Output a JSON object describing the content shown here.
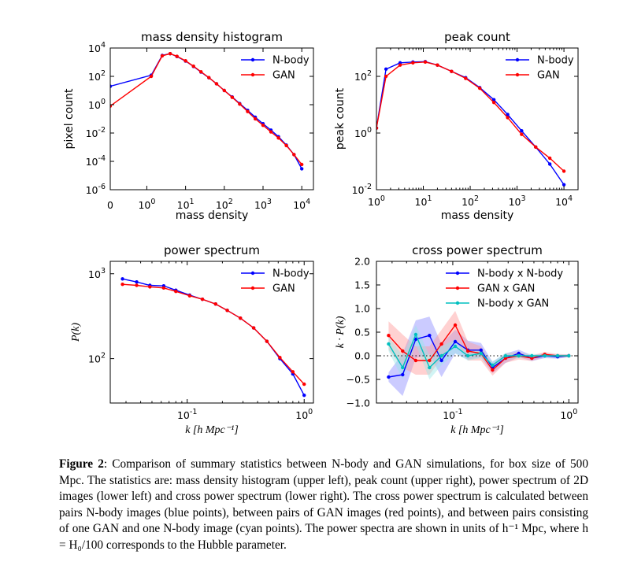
{
  "chart_data": [
    {
      "type": "line",
      "title": "mass density histogram",
      "xlabel": "mass density",
      "ylabel": "pixel count",
      "xscale": "symlog",
      "yscale": "log",
      "xlim": [
        0,
        20000
      ],
      "ylim": [
        1e-06,
        10000.0
      ],
      "xticks": [
        {
          "base": "",
          "exp": "",
          "text": "0"
        },
        {
          "base": "10",
          "exp": "0"
        },
        {
          "base": "10",
          "exp": "1"
        },
        {
          "base": "10",
          "exp": "2"
        },
        {
          "base": "10",
          "exp": "3"
        },
        {
          "base": "10",
          "exp": "4"
        }
      ],
      "yticks": [
        {
          "base": "10",
          "exp": "-6"
        },
        {
          "base": "10",
          "exp": "-4"
        },
        {
          "base": "10",
          "exp": "-2"
        },
        {
          "base": "10",
          "exp": "0"
        },
        {
          "base": "10",
          "exp": "2"
        },
        {
          "base": "10",
          "exp": "4"
        }
      ],
      "legend": "top-right",
      "series": [
        {
          "name": "N-body",
          "color": "#0000ff",
          "x": [
            0,
            1.3,
            2.5,
            4,
            6,
            10,
            16,
            25,
            40,
            63,
            100,
            160,
            250,
            400,
            630,
            1000,
            1600,
            2500,
            4000,
            6300,
            10000
          ],
          "y": [
            20,
            120,
            3000,
            4000,
            2500,
            1200,
            500,
            200,
            80,
            30,
            10,
            3.5,
            1.2,
            0.4,
            0.13,
            0.045,
            0.016,
            0.0055,
            0.0014,
            0.0003,
            3e-05
          ]
        },
        {
          "name": "GAN",
          "color": "#ff0000",
          "x": [
            0,
            1.3,
            2.5,
            4,
            6,
            10,
            16,
            25,
            40,
            63,
            100,
            160,
            250,
            400,
            630,
            1000,
            1600,
            2500,
            4000,
            6300,
            10000
          ],
          "y": [
            0.8,
            100,
            2800,
            4000,
            2600,
            1250,
            520,
            210,
            82,
            30,
            10,
            3.3,
            1.1,
            0.33,
            0.1,
            0.035,
            0.012,
            0.0045,
            0.0013,
            0.0003,
            6e-05
          ]
        }
      ]
    },
    {
      "type": "line",
      "title": "peak count",
      "xlabel": "mass density",
      "ylabel": "peak count",
      "xscale": "log",
      "yscale": "log",
      "xlim": [
        1,
        20000
      ],
      "ylim": [
        0.01,
        1000
      ],
      "xticks": [
        {
          "base": "10",
          "exp": "0"
        },
        {
          "base": "10",
          "exp": "1"
        },
        {
          "base": "10",
          "exp": "2"
        },
        {
          "base": "10",
          "exp": "3"
        },
        {
          "base": "10",
          "exp": "4"
        }
      ],
      "yticks": [
        {
          "base": "10",
          "exp": "-2"
        },
        {
          "base": "10",
          "exp": "0"
        },
        {
          "base": "10",
          "exp": "2"
        }
      ],
      "legend": "top-right",
      "series": [
        {
          "name": "N-body",
          "color": "#0000ff",
          "x": [
            1,
            1.6,
            3.2,
            6,
            11,
            20,
            40,
            80,
            160,
            320,
            630,
            1250,
            2500,
            5000,
            10000
          ],
          "y": [
            1.5,
            180,
            300,
            320,
            330,
            250,
            150,
            90,
            40,
            15,
            4.5,
            1.2,
            0.32,
            0.08,
            0.015
          ]
        },
        {
          "name": "GAN",
          "color": "#ff0000",
          "x": [
            1,
            1.6,
            3.2,
            6,
            11,
            20,
            40,
            80,
            160,
            320,
            630,
            1250,
            2500,
            5000,
            10000
          ],
          "y": [
            1.5,
            100,
            250,
            300,
            320,
            250,
            150,
            85,
            38,
            12,
            3.5,
            0.9,
            0.32,
            0.13,
            0.045
          ]
        }
      ]
    },
    {
      "type": "line",
      "title": "power spectrum",
      "xlabel": "k [h Mpc⁻¹]",
      "ylabel": "P(k)",
      "xscale": "log",
      "yscale": "log",
      "xlim": [
        0.022,
        1.2
      ],
      "ylim": [
        30,
        1400
      ],
      "xticks": [
        {
          "base": "10",
          "exp": "-1"
        },
        {
          "base": "10",
          "exp": "0"
        }
      ],
      "yticks": [
        {
          "base": "10",
          "exp": "2"
        },
        {
          "base": "10",
          "exp": "3"
        }
      ],
      "legend": "top-right",
      "series": [
        {
          "name": "N-body",
          "color": "#0000ff",
          "x": [
            0.028,
            0.037,
            0.048,
            0.063,
            0.08,
            0.105,
            0.135,
            0.175,
            0.22,
            0.285,
            0.37,
            0.48,
            0.62,
            0.8,
            1.0
          ],
          "y": [
            870,
            800,
            730,
            720,
            640,
            560,
            500,
            440,
            370,
            300,
            230,
            160,
            100,
            66,
            37
          ]
        },
        {
          "name": "GAN",
          "color": "#ff0000",
          "x": [
            0.028,
            0.037,
            0.048,
            0.063,
            0.08,
            0.105,
            0.135,
            0.175,
            0.22,
            0.285,
            0.37,
            0.48,
            0.62,
            0.8,
            1.0
          ],
          "y": [
            750,
            730,
            700,
            680,
            620,
            550,
            500,
            440,
            370,
            300,
            230,
            160,
            103,
            70,
            50
          ]
        }
      ]
    },
    {
      "type": "line",
      "title": "cross power spectrum",
      "xlabel": "k [h Mpc⁻¹]",
      "ylabel": "k · P(k)",
      "xscale": "log",
      "yscale": "linear",
      "xlim": [
        0.022,
        1.2
      ],
      "ylim": [
        -1.0,
        2.0
      ],
      "xticks": [
        {
          "base": "10",
          "exp": "-1"
        },
        {
          "base": "10",
          "exp": "0"
        }
      ],
      "yticks": [
        {
          "text": "−1.0"
        },
        {
          "text": "−0.5"
        },
        {
          "text": "0.0"
        },
        {
          "text": "0.5"
        },
        {
          "text": "1.0"
        },
        {
          "text": "1.5"
        },
        {
          "text": "2.0"
        }
      ],
      "legend": "top-right",
      "series": [
        {
          "name": "N-body x N-body",
          "color": "#0000ff",
          "band": "#8c8cff",
          "x": [
            0.028,
            0.037,
            0.048,
            0.063,
            0.08,
            0.105,
            0.135,
            0.175,
            0.22,
            0.285,
            0.37,
            0.48,
            0.62,
            0.8,
            1.0
          ],
          "y": [
            -0.45,
            -0.4,
            0.35,
            0.43,
            -0.1,
            0.3,
            0.12,
            0.12,
            -0.25,
            -0.05,
            0.05,
            -0.05,
            0.0,
            -0.02,
            0.0
          ],
          "err": [
            0.1,
            0.45,
            0.4,
            0.4,
            0.35,
            0.25,
            0.2,
            0.15,
            0.12,
            0.1,
            0.08,
            0.06,
            0.05,
            0.04,
            0.03
          ]
        },
        {
          "name": "GAN x GAN",
          "color": "#ff0000",
          "band": "#ff9999",
          "x": [
            0.028,
            0.037,
            0.048,
            0.063,
            0.08,
            0.105,
            0.135,
            0.175,
            0.22,
            0.285,
            0.37,
            0.48,
            0.62,
            0.8,
            1.0
          ],
          "y": [
            0.43,
            0.1,
            -0.1,
            -0.1,
            0.25,
            0.65,
            0.1,
            0.05,
            -0.3,
            -0.05,
            0.0,
            -0.05,
            0.03,
            0.0,
            0.0
          ],
          "err": [
            0.3,
            0.35,
            0.3,
            0.3,
            0.3,
            0.3,
            0.2,
            0.15,
            0.12,
            0.1,
            0.08,
            0.06,
            0.05,
            0.04,
            0.03
          ]
        },
        {
          "name": "N-body x GAN",
          "color": "#00c0c0",
          "band": "#99e6e6",
          "x": [
            0.028,
            0.037,
            0.048,
            0.063,
            0.08,
            0.105,
            0.135,
            0.175,
            0.22,
            0.285,
            0.37,
            0.48,
            0.62,
            0.8,
            1.0
          ],
          "y": [
            0.25,
            -0.25,
            0.45,
            -0.25,
            0.0,
            0.2,
            0.0,
            0.05,
            -0.2,
            0.0,
            0.0,
            0.0,
            0.0,
            0.0,
            0.0
          ],
          "err": [
            0.15,
            0.25,
            0.2,
            0.25,
            0.2,
            0.15,
            0.1,
            0.1,
            0.08,
            0.06,
            0.05,
            0.04,
            0.03,
            0.03,
            0.02
          ]
        }
      ]
    }
  ],
  "caption": {
    "label": "Figure 2",
    "text": ": Comparison of summary statistics between N-body and GAN simulations, for box size of 500 Mpc. The statistics are: mass density histogram (upper left), peak count (upper right), power spectrum of 2D images (lower left) and cross power spectrum (lower right). The cross power spectrum is calculated between pairs N-body images (blue points), between pairs of GAN images (red points), and between pairs consisting of one GAN and one N-body image (cyan points). The power spectra are shown in units of h⁻¹ Mpc, where h = H₀/100 corresponds to the Hubble parameter."
  }
}
